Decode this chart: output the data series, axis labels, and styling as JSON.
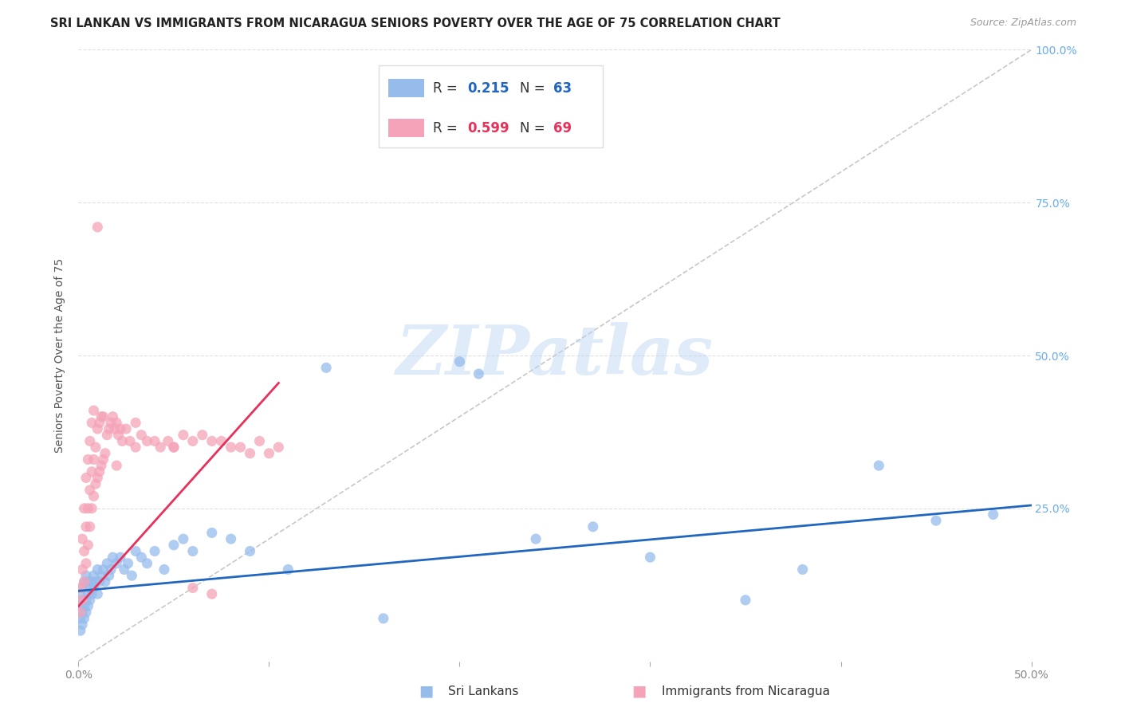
{
  "title": "SRI LANKAN VS IMMIGRANTS FROM NICARAGUA SENIORS POVERTY OVER THE AGE OF 75 CORRELATION CHART",
  "source": "Source: ZipAtlas.com",
  "ylabel": "Seniors Poverty Over the Age of 75",
  "xlim": [
    0.0,
    0.5
  ],
  "ylim": [
    0.0,
    1.0
  ],
  "x_tick_positions": [
    0.0,
    0.1,
    0.2,
    0.3,
    0.4,
    0.5
  ],
  "x_tick_labels": [
    "0.0%",
    "",
    "",
    "",
    "",
    "50.0%"
  ],
  "y_tick_positions": [
    0.0,
    0.25,
    0.5,
    0.75,
    1.0
  ],
  "y_tick_labels_right": [
    "",
    "25.0%",
    "50.0%",
    "75.0%",
    "100.0%"
  ],
  "sri_lankan_color": "#96bcec",
  "nicaragua_color": "#f5a3b8",
  "sri_lankan_line_color": "#2166c0",
  "nicaragua_line_color": "#e8305a",
  "diagonal_color": "#c8c8c8",
  "grid_color": "#e0e0e0",
  "sri_lankan_label": "Sri Lankans",
  "nicaragua_label": "Immigrants from Nicaragua",
  "watermark": "ZIPatlas",
  "background_color": "#ffffff",
  "title_fontsize": 10.5,
  "axis_label_fontsize": 10,
  "tick_fontsize": 10,
  "legend_fontsize": 12,
  "marker_size": 90,
  "sri_x": [
    0.001,
    0.001,
    0.001,
    0.001,
    0.002,
    0.002,
    0.002,
    0.002,
    0.003,
    0.003,
    0.003,
    0.004,
    0.004,
    0.004,
    0.005,
    0.005,
    0.005,
    0.006,
    0.006,
    0.007,
    0.007,
    0.008,
    0.008,
    0.009,
    0.01,
    0.01,
    0.011,
    0.012,
    0.013,
    0.014,
    0.015,
    0.016,
    0.017,
    0.018,
    0.02,
    0.022,
    0.024,
    0.026,
    0.028,
    0.03,
    0.033,
    0.036,
    0.04,
    0.045,
    0.05,
    0.055,
    0.06,
    0.07,
    0.08,
    0.09,
    0.11,
    0.13,
    0.16,
    0.2,
    0.21,
    0.24,
    0.27,
    0.3,
    0.35,
    0.38,
    0.42,
    0.45,
    0.48
  ],
  "sri_y": [
    0.05,
    0.07,
    0.09,
    0.11,
    0.06,
    0.08,
    0.1,
    0.12,
    0.07,
    0.09,
    0.13,
    0.08,
    0.1,
    0.14,
    0.09,
    0.11,
    0.13,
    0.1,
    0.12,
    0.11,
    0.13,
    0.12,
    0.14,
    0.13,
    0.11,
    0.15,
    0.13,
    0.14,
    0.15,
    0.13,
    0.16,
    0.14,
    0.15,
    0.17,
    0.16,
    0.17,
    0.15,
    0.16,
    0.14,
    0.18,
    0.17,
    0.16,
    0.18,
    0.15,
    0.19,
    0.2,
    0.18,
    0.21,
    0.2,
    0.18,
    0.15,
    0.48,
    0.07,
    0.49,
    0.47,
    0.2,
    0.22,
    0.17,
    0.1,
    0.15,
    0.32,
    0.23,
    0.24
  ],
  "nic_x": [
    0.001,
    0.001,
    0.002,
    0.002,
    0.002,
    0.003,
    0.003,
    0.003,
    0.004,
    0.004,
    0.004,
    0.005,
    0.005,
    0.005,
    0.006,
    0.006,
    0.006,
    0.007,
    0.007,
    0.007,
    0.008,
    0.008,
    0.008,
    0.009,
    0.009,
    0.01,
    0.01,
    0.011,
    0.011,
    0.012,
    0.012,
    0.013,
    0.013,
    0.014,
    0.015,
    0.016,
    0.017,
    0.018,
    0.019,
    0.02,
    0.021,
    0.022,
    0.023,
    0.025,
    0.027,
    0.03,
    0.033,
    0.036,
    0.04,
    0.043,
    0.047,
    0.05,
    0.055,
    0.06,
    0.065,
    0.07,
    0.075,
    0.08,
    0.085,
    0.09,
    0.095,
    0.1,
    0.105,
    0.01,
    0.02,
    0.03,
    0.05,
    0.06,
    0.07
  ],
  "nic_y": [
    0.08,
    0.12,
    0.1,
    0.15,
    0.2,
    0.13,
    0.18,
    0.25,
    0.16,
    0.22,
    0.3,
    0.19,
    0.25,
    0.33,
    0.22,
    0.28,
    0.36,
    0.25,
    0.31,
    0.39,
    0.27,
    0.33,
    0.41,
    0.29,
    0.35,
    0.3,
    0.38,
    0.31,
    0.39,
    0.32,
    0.4,
    0.33,
    0.4,
    0.34,
    0.37,
    0.38,
    0.39,
    0.4,
    0.38,
    0.39,
    0.37,
    0.38,
    0.36,
    0.38,
    0.36,
    0.35,
    0.37,
    0.36,
    0.36,
    0.35,
    0.36,
    0.35,
    0.37,
    0.36,
    0.37,
    0.36,
    0.36,
    0.35,
    0.35,
    0.34,
    0.36,
    0.34,
    0.35,
    0.71,
    0.32,
    0.39,
    0.35,
    0.12,
    0.11
  ],
  "sri_line_x": [
    0.0,
    0.5
  ],
  "sri_line_y": [
    0.115,
    0.255
  ],
  "nic_line_x": [
    0.0,
    0.105
  ],
  "nic_line_y": [
    0.09,
    0.455
  ]
}
